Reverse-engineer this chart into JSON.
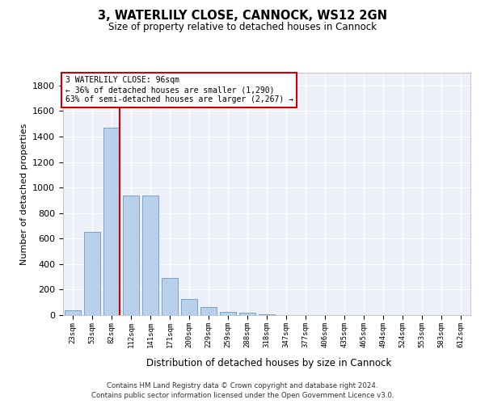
{
  "title": "3, WATERLILY CLOSE, CANNOCK, WS12 2GN",
  "subtitle": "Size of property relative to detached houses in Cannock",
  "xlabel": "Distribution of detached houses by size in Cannock",
  "ylabel": "Number of detached properties",
  "bins": [
    "23sqm",
    "53sqm",
    "82sqm",
    "112sqm",
    "141sqm",
    "171sqm",
    "200sqm",
    "229sqm",
    "259sqm",
    "288sqm",
    "318sqm",
    "347sqm",
    "377sqm",
    "406sqm",
    "435sqm",
    "465sqm",
    "494sqm",
    "524sqm",
    "553sqm",
    "583sqm",
    "612sqm"
  ],
  "values": [
    35,
    650,
    1470,
    935,
    935,
    290,
    125,
    65,
    25,
    20,
    5,
    0,
    0,
    0,
    0,
    0,
    0,
    0,
    0,
    0,
    0
  ],
  "bar_color": "#b8d0ea",
  "bar_edge_color": "#6699cc",
  "red_line_x": 2.4,
  "property_label": "3 WATERLILY CLOSE: 96sqm",
  "annotation_line1": "← 36% of detached houses are smaller (1,290)",
  "annotation_line2": "63% of semi-detached houses are larger (2,267) →",
  "annotation_box_color": "#ffffff",
  "annotation_box_edge": "#cc0000",
  "red_line_color": "#cc0000",
  "ylim": [
    0,
    1900
  ],
  "yticks": [
    0,
    200,
    400,
    600,
    800,
    1000,
    1200,
    1400,
    1600,
    1800
  ],
  "bg_color": "#edf0f8",
  "grid_color": "#ffffff",
  "footer1": "Contains HM Land Registry data © Crown copyright and database right 2024.",
  "footer2": "Contains public sector information licensed under the Open Government Licence v3.0."
}
